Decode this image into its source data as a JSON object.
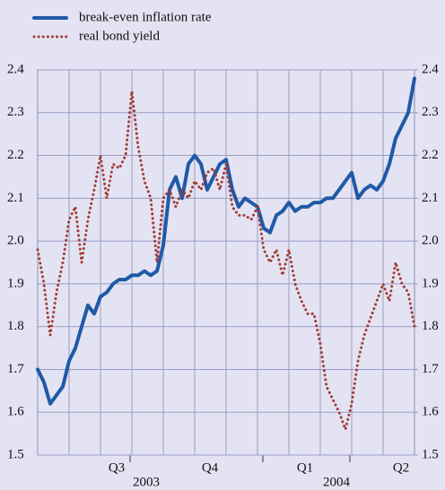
{
  "chart_data": {
    "type": "line",
    "quarters": [
      "Q3",
      "Q4",
      "Q1",
      "Q2"
    ],
    "years": [
      "2003",
      "2004"
    ],
    "ylim": [
      1.5,
      2.4
    ],
    "yticks": [
      1.5,
      1.6,
      1.7,
      1.8,
      1.9,
      {
        "value": 2,
        "label": "2.0"
      },
      2.1,
      2.2,
      2.3,
      2.4
    ],
    "y2lim": [
      1.5,
      2.4
    ],
    "y2ticks": [
      1.5,
      1.6,
      1.7,
      1.8,
      1.9,
      {
        "value": 2,
        "label": "2.0"
      },
      2.1,
      2.2,
      2.3,
      2.4
    ],
    "grid": true,
    "legend": "top-left",
    "series": [
      {
        "name": "break-even inflation rate",
        "color": "#1f5aa6",
        "values": [
          1.7,
          1.67,
          1.62,
          1.64,
          1.66,
          1.72,
          1.75,
          1.8,
          1.85,
          1.83,
          1.87,
          1.88,
          1.9,
          1.91,
          1.91,
          1.92,
          1.92,
          1.93,
          1.92,
          1.93,
          1.99,
          2.12,
          2.15,
          2.1,
          2.18,
          2.2,
          2.18,
          2.12,
          2.15,
          2.18,
          2.19,
          2.12,
          2.08,
          2.1,
          2.09,
          2.08,
          2.03,
          2.02,
          2.06,
          2.07,
          2.09,
          2.07,
          2.08,
          2.08,
          2.09,
          2.09,
          2.1,
          2.1,
          2.12,
          2.14,
          2.16,
          2.1,
          2.12,
          2.13,
          2.12,
          2.14,
          2.18,
          2.24,
          2.27,
          2.3,
          2.38
        ]
      },
      {
        "name": "real bond yield",
        "color": "#a33a33",
        "values": [
          1.98,
          1.9,
          1.78,
          1.88,
          1.95,
          2.05,
          2.08,
          1.95,
          2.05,
          2.12,
          2.2,
          2.1,
          2.18,
          2.17,
          2.2,
          2.35,
          2.22,
          2.14,
          2.1,
          1.95,
          2.1,
          2.12,
          2.08,
          2.12,
          2.1,
          2.14,
          2.12,
          2.16,
          2.17,
          2.12,
          2.18,
          2.08,
          2.06,
          2.06,
          2.05,
          2.08,
          1.98,
          1.95,
          1.98,
          1.92,
          1.98,
          1.9,
          1.86,
          1.83,
          1.83,
          1.76,
          1.66,
          1.63,
          1.6,
          1.56,
          1.62,
          1.72,
          1.78,
          1.82,
          1.86,
          1.9,
          1.86,
          1.95,
          1.9,
          1.88,
          1.8
        ]
      }
    ]
  }
}
